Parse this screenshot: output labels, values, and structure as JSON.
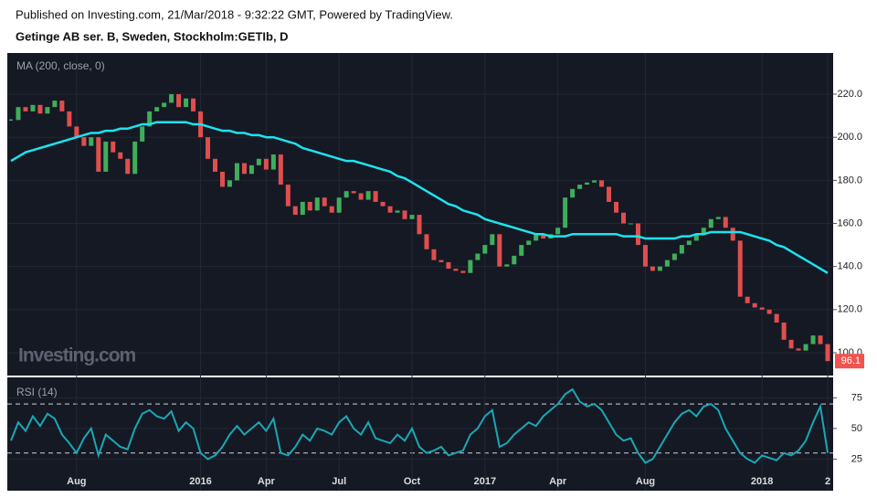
{
  "header": {
    "published": "Published on Investing.com, 21/Mar/2018 - 9:32:22 GMT, Powered by TradingView.",
    "title": "Getinge AB ser. B, Sweden, Stockholm:GETIb, D",
    "watermark": "Investing.com"
  },
  "chart_data": [
    {
      "type": "candlestick",
      "label": "MA (200, close, 0)",
      "up_color": "#3fae5a",
      "down_color": "#e04e4e",
      "close": [
        208,
        214,
        212,
        215,
        211,
        214,
        217,
        212,
        205,
        200,
        196,
        200,
        184,
        198,
        193,
        190,
        183,
        198,
        205,
        212,
        214,
        216,
        220,
        214,
        218,
        212,
        200,
        190,
        184,
        177,
        180,
        188,
        183,
        187,
        190,
        185,
        192,
        178,
        168,
        164,
        170,
        166,
        172,
        168,
        165,
        172,
        175,
        174,
        171,
        175,
        170,
        168,
        165,
        166,
        162,
        164,
        155,
        148,
        143,
        142,
        139,
        138,
        137,
        143,
        146,
        150,
        155,
        140,
        141,
        145,
        150,
        152,
        155,
        153,
        155,
        158,
        172,
        176,
        178,
        179,
        180,
        177,
        170,
        165,
        160,
        160,
        150,
        140,
        138,
        140,
        143,
        146,
        150,
        152,
        155,
        158,
        162,
        163,
        158,
        152,
        126,
        123,
        121,
        120,
        118,
        114,
        106,
        102,
        101,
        104,
        108,
        104,
        96.1
      ],
      "ma": {
        "color": "#1de3ee",
        "values": [
          189,
          191,
          193,
          194,
          195,
          196,
          197,
          198,
          199,
          200,
          201,
          202,
          202,
          203,
          203,
          204,
          204,
          205,
          206,
          206,
          207,
          207,
          207,
          207,
          207,
          206,
          206,
          205,
          204,
          203,
          203,
          202,
          202,
          201,
          201,
          200,
          200,
          199,
          198,
          197,
          195,
          194,
          193,
          192,
          191,
          190,
          189,
          189,
          188,
          187,
          186,
          185,
          184,
          182,
          181,
          179,
          177,
          175,
          173,
          171,
          169,
          168,
          166,
          165,
          164,
          162,
          161,
          160,
          159,
          158,
          157,
          156,
          155,
          155,
          154,
          154,
          154,
          155,
          155,
          155,
          155,
          155,
          155,
          155,
          154,
          154,
          154,
          153,
          153,
          153,
          153,
          153,
          154,
          154,
          155,
          155,
          156,
          156,
          156,
          156,
          156,
          155,
          154,
          153,
          152,
          150,
          149,
          147,
          145,
          143,
          141,
          139,
          137
        ]
      },
      "last_color": "#f05350",
      "ylim": [
        89.4,
        239.1
      ],
      "yticks": [
        {
          "value": 100,
          "label": "100.0"
        },
        {
          "value": 120,
          "label": "120.0"
        },
        {
          "value": 140,
          "label": "140.0"
        },
        {
          "value": 160,
          "label": "160.0"
        },
        {
          "value": 180,
          "label": "180.0"
        },
        {
          "value": 200,
          "label": "200.0"
        },
        {
          "value": 220,
          "label": "220.0"
        }
      ],
      "grid": true
    },
    {
      "type": "line",
      "label": "RSI (14)",
      "color": "#1aa7b5",
      "categories": [
        null,
        null,
        null,
        null,
        null,
        null,
        null,
        null,
        null,
        "Aug",
        null,
        null,
        null,
        null,
        null,
        null,
        null,
        null,
        null,
        null,
        null,
        null,
        null,
        null,
        null,
        null,
        "2016",
        null,
        null,
        null,
        null,
        null,
        null,
        null,
        null,
        "Apr",
        null,
        null,
        null,
        null,
        null,
        null,
        null,
        null,
        null,
        "Jul",
        null,
        null,
        null,
        null,
        null,
        null,
        null,
        null,
        null,
        "Oct",
        null,
        null,
        null,
        null,
        null,
        null,
        null,
        null,
        null,
        "2017",
        null,
        null,
        null,
        null,
        null,
        null,
        null,
        null,
        null,
        "Apr",
        null,
        null,
        null,
        null,
        null,
        null,
        null,
        null,
        null,
        null,
        null,
        "Aug",
        null,
        null,
        null,
        null,
        null,
        null,
        null,
        null,
        null,
        null,
        null,
        null,
        null,
        null,
        null,
        "2018",
        null,
        null,
        null,
        null,
        null,
        null,
        null,
        null,
        "2"
      ],
      "values": [
        40,
        55,
        48,
        60,
        52,
        62,
        58,
        45,
        38,
        30,
        42,
        50,
        28,
        45,
        40,
        35,
        33,
        50,
        62,
        65,
        60,
        58,
        64,
        48,
        55,
        50,
        30,
        25,
        28,
        35,
        45,
        52,
        45,
        50,
        55,
        48,
        58,
        30,
        28,
        35,
        45,
        40,
        50,
        48,
        45,
        55,
        60,
        50,
        45,
        55,
        42,
        40,
        38,
        45,
        40,
        50,
        35,
        30,
        32,
        35,
        28,
        30,
        32,
        45,
        50,
        60,
        65,
        35,
        38,
        45,
        50,
        55,
        52,
        60,
        65,
        70,
        78,
        82,
        72,
        68,
        70,
        65,
        55,
        45,
        40,
        42,
        30,
        22,
        25,
        35,
        45,
        55,
        62,
        65,
        60,
        68,
        70,
        65,
        50,
        40,
        30,
        25,
        22,
        28,
        26,
        24,
        30,
        28,
        32,
        40,
        55,
        68,
        30
      ],
      "ylim": [
        -0.8,
        91.7
      ],
      "yticks": [
        25,
        50,
        75
      ],
      "bands": [
        30,
        70
      ],
      "grid": true
    }
  ]
}
